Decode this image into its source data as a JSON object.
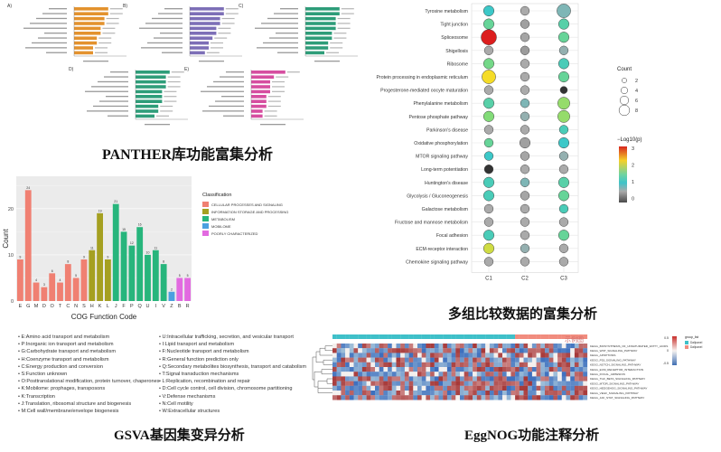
{
  "captions": {
    "panther": "PANTHER库功能富集分析",
    "multi": "多组比较数据的富集分析",
    "gsva": "GSVA基因集变异分析",
    "eggnog": "EggNOG功能注释分析"
  },
  "panther_panels": [
    {
      "letter": "A)",
      "color": "#e3922e",
      "bars": 10,
      "values": [
        9,
        9,
        8,
        8,
        7,
        7,
        6,
        6,
        5,
        5
      ]
    },
    {
      "letter": "B)",
      "color": "#7d6fb7",
      "bars": 10,
      "values": [
        9,
        9,
        8,
        8,
        7,
        7,
        6,
        5,
        5,
        4
      ]
    },
    {
      "letter": "C)",
      "color": "#2e9d79",
      "bars": 10,
      "values": [
        9,
        9,
        8,
        8,
        8,
        7,
        7,
        6,
        6,
        5
      ]
    },
    {
      "letter": "D)",
      "color": "#2e9d79",
      "bars": 10,
      "values": [
        9,
        8,
        8,
        8,
        7,
        7,
        7,
        6,
        6,
        5
      ]
    },
    {
      "letter": "E)",
      "color": "#d64ea0",
      "bars": 10,
      "values": [
        9,
        6,
        5,
        5,
        5,
        4,
        4,
        4,
        3,
        3
      ]
    }
  ],
  "chart_data": [
    {
      "type": "bar",
      "title": "",
      "xlabel": "COG Function Code",
      "ylabel": "Count",
      "categories": [
        "E",
        "G",
        "M",
        "D",
        "O",
        "T",
        "C",
        "N",
        "S",
        "H",
        "K",
        "L",
        "J",
        "F",
        "P",
        "Q",
        "U",
        "I",
        "V",
        "Z",
        "B",
        "R"
      ],
      "values": [
        9,
        24,
        4,
        3,
        6,
        4,
        8,
        5,
        9,
        11,
        19,
        9,
        21,
        15,
        12,
        16,
        10,
        11,
        8,
        2,
        5,
        5
      ],
      "category_classes": [
        0,
        0,
        0,
        0,
        0,
        0,
        0,
        0,
        0,
        1,
        1,
        1,
        2,
        2,
        2,
        2,
        2,
        2,
        2,
        3,
        4,
        4
      ],
      "classification_title": "Classification",
      "classes": [
        {
          "name": "CELLULAR PROCESSES AND SIGNALING",
          "color": "#f08072"
        },
        {
          "name": "INFORMATION STORAGE AND PROCESSING",
          "color": "#a5a021"
        },
        {
          "name": "METABOLISM",
          "color": "#27b57c"
        },
        {
          "name": "MOBILOME",
          "color": "#4aa0e0"
        },
        {
          "name": "POORLY CHARACTERIZED",
          "color": "#e26ae0"
        }
      ],
      "yticks": [
        "0",
        "10",
        "20"
      ],
      "ylim": [
        0,
        27
      ],
      "legend_position": "right",
      "descriptions_left": [
        "E:Amino acid transport and metabolism",
        "P:Inorganic ion transport and metabolism",
        "G:Carbohydrate transport and metabolism",
        "H:Coenzyme transport and metabolism",
        "C:Energy production and conversion",
        "S:Function unknown",
        "O:Posttranslational modification, protein turnover, chaperones",
        "K:Mobilome: prophages, transposons",
        "K:Transcription",
        "J:Translation, ribosomal structure and biogenesis",
        "M:Cell wall/membrane/envelope biogenesis"
      ],
      "descriptions_right": [
        "U:Intracellular trafficking, secretion, and vesicular transport",
        "I:Lipid transport and metabolism",
        "F:Nucleotide transport and metabolism",
        "R:General function prediction only",
        "Q:Secondary metabolites biosynthesis, transport and catabolism",
        "T:Signal transduction mechanisms",
        "L:Replication, recombination and repair",
        "D:Cell cycle control, cell division, chromosome partitioning",
        "V:Defense mechanisms",
        "N:Cell motility",
        "W:Extracellular structures"
      ]
    },
    {
      "type": "scatter",
      "title": "",
      "xlabel": "",
      "ylabel": "",
      "x_categories": [
        "C1",
        "C2",
        "C3"
      ],
      "y_categories": [
        "Tyrosine metabolism",
        "Tight junction",
        "Spliceosome",
        "Shigellosis",
        "Ribosome",
        "Protein processing in endoplasmic reticulum",
        "Progesterone-mediated oocyte maturation",
        "Phenylalanine metabolism",
        "Pentose phosphate pathway",
        "Parkinson's disease",
        "Oxidative phosphorylation",
        "MTOR signaling pathway",
        "Long-term potentiation",
        "Huntington's disease",
        "Glycolysis / Gluconeogenesis",
        "Galactose metabolism",
        "Fructose and mannose metabolism",
        "Focal adhesion",
        "ECM-receptor interaction",
        "Chemokine signaling pathway"
      ],
      "points": [
        [
          [
            4,
            1.5
          ],
          [
            3,
            1
          ],
          [
            6,
            1.2
          ]
        ],
        [
          [
            4,
            1.8
          ],
          [
            3,
            0.8
          ],
          [
            4,
            1.7
          ]
        ],
        [
          [
            7,
            3.4
          ],
          [
            3,
            0.9
          ],
          [
            4,
            1.8
          ]
        ],
        [
          [
            3,
            1.0
          ],
          [
            3,
            0.7
          ],
          [
            3,
            1.1
          ]
        ],
        [
          [
            4,
            1.9
          ],
          [
            3,
            1.0
          ],
          [
            4,
            1.6
          ]
        ],
        [
          [
            6,
            2.6
          ],
          [
            3,
            1.0
          ],
          [
            4,
            1.8
          ]
        ],
        [
          [
            3,
            1.0
          ],
          [
            3,
            1.0
          ],
          [
            2,
            0.2
          ]
        ],
        [
          [
            4,
            1.7
          ],
          [
            3,
            1.2
          ],
          [
            5,
            2.1
          ]
        ],
        [
          [
            4,
            2.0
          ],
          [
            3,
            1.1
          ],
          [
            5,
            2.1
          ]
        ],
        [
          [
            3,
            1.0
          ],
          [
            3,
            1.0
          ],
          [
            3,
            1.6
          ]
        ],
        [
          [
            3,
            1.8
          ],
          [
            4,
            0.8
          ],
          [
            4,
            1.5
          ]
        ],
        [
          [
            3,
            1.5
          ],
          [
            3,
            0.9
          ],
          [
            3,
            1.1
          ]
        ],
        [
          [
            3,
            0.2
          ],
          [
            3,
            1.0
          ],
          [
            3,
            1.0
          ]
        ],
        [
          [
            4,
            1.6
          ],
          [
            3,
            1.2
          ],
          [
            4,
            1.7
          ]
        ],
        [
          [
            4,
            1.6
          ],
          [
            3,
            0.9
          ],
          [
            4,
            1.8
          ]
        ],
        [
          [
            3,
            1.0
          ],
          [
            3,
            1.0
          ],
          [
            3,
            1.6
          ]
        ],
        [
          [
            3,
            1.0
          ],
          [
            3,
            1.0
          ],
          [
            3,
            1.0
          ]
        ],
        [
          [
            4,
            1.6
          ],
          [
            3,
            1.0
          ],
          [
            4,
            1.8
          ]
        ],
        [
          [
            4,
            2.4
          ],
          [
            3,
            1.1
          ],
          [
            3,
            1.0
          ]
        ],
        [
          [
            3,
            1.0
          ],
          [
            3,
            1.0
          ],
          [
            3,
            1.0
          ]
        ]
      ],
      "legend_count_title": "Count",
      "legend_count_values": [
        2,
        4,
        6,
        8
      ],
      "legend_color_title": "−Log10(p)",
      "legend_color_ticks": [
        "3",
        "2",
        "1",
        "0"
      ],
      "legend_position": "right"
    },
    {
      "type": "heatmap",
      "title": "",
      "right_labels": [
        "KEGG_BIOSYNTHESIS_OF_UNSATURATED_FATTY_ACIDS",
        "KEGG_WNT_SIGNALING_PATHWAY",
        "KEGG_APOPTOSIS",
        "KEGG_P53_SIGNALING_PATHWAY",
        "KEGG_NOTCH_SIGNALING_PATHWAY",
        "KEGG_ECM_RECEPTOR_INTERACTION",
        "KEGG_FOCAL_ADHESION",
        "KEGG_TGF_BETA_SIGNALING_PATHWAY",
        "KEGG_MTOR_SIGNALING_PATHWAY",
        "KEGG_HEDGEHOG_SIGNALING_PATHWAY",
        "KEGG_VEGF_SIGNALING_PATHWAY",
        "KEGG_JAK_STAT_SIGNALING_PATHWAY"
      ],
      "watermark": "示例图",
      "legend_title": "group_list",
      "legend_groups": [
        {
          "name": "Dallpanel",
          "color": "#3fc0c9"
        },
        {
          "name": "Dallpanel",
          "color": "#f18c7e"
        }
      ],
      "scale_ticks": [
        "0.5",
        "0",
        "-0.5"
      ]
    }
  ]
}
